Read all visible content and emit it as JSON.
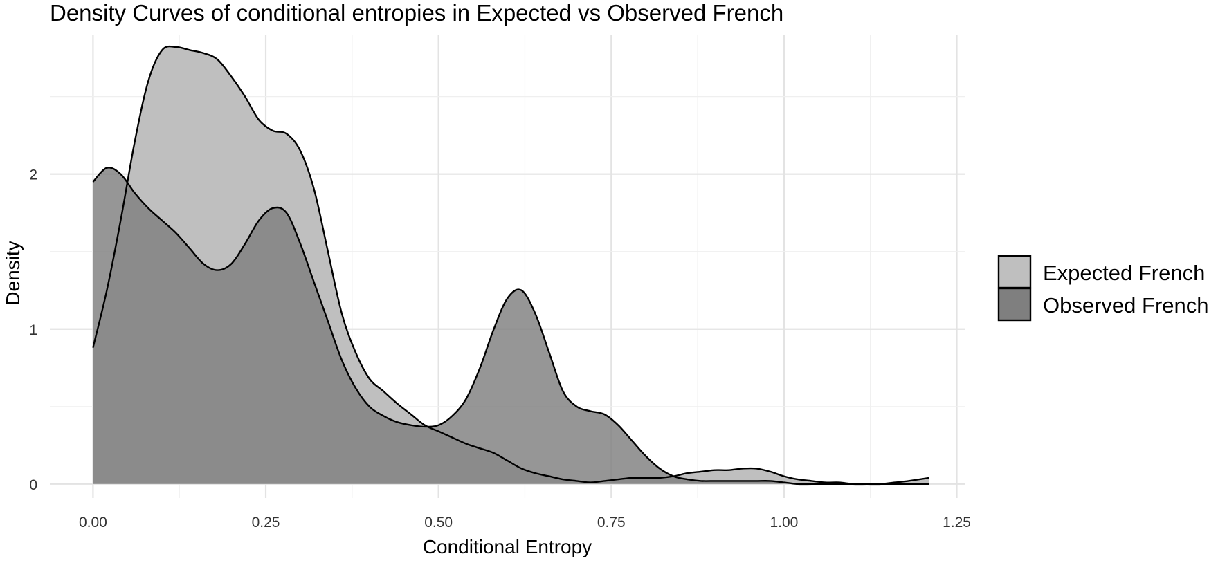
{
  "chart_data": {
    "type": "area",
    "title": "Density Curves of conditional entropies in Expected vs Observed French",
    "xlabel": "Conditional Entropy",
    "ylabel": "Density",
    "xlim": [
      -0.0625,
      1.2625
    ],
    "ylim": [
      -0.09,
      2.9
    ],
    "x_ticks": [
      0.0,
      0.25,
      0.5,
      0.75,
      1.0,
      1.25
    ],
    "x_tick_labels": [
      "0.00",
      "0.25",
      "0.50",
      "0.75",
      "1.00",
      "1.25"
    ],
    "y_ticks": [
      0,
      1,
      2
    ],
    "y_tick_labels": [
      "0",
      "1",
      "2"
    ],
    "grid": true,
    "legend_position": "right",
    "series": [
      {
        "name": "Expected French",
        "color": "#bfbfbf",
        "x": [
          0.0,
          0.02,
          0.04,
          0.06,
          0.08,
          0.1,
          0.12,
          0.14,
          0.16,
          0.18,
          0.2,
          0.22,
          0.24,
          0.26,
          0.28,
          0.3,
          0.32,
          0.34,
          0.36,
          0.38,
          0.4,
          0.42,
          0.44,
          0.46,
          0.48,
          0.5,
          0.52,
          0.54,
          0.56,
          0.58,
          0.6,
          0.62,
          0.64,
          0.66,
          0.68,
          0.7,
          0.72,
          0.74,
          0.76,
          0.78,
          0.8,
          0.82,
          0.84,
          0.86,
          0.88,
          0.9,
          0.92,
          0.94,
          0.96,
          0.98,
          1.0,
          1.02,
          1.04,
          1.06,
          1.08,
          1.1,
          1.12,
          1.14,
          1.16,
          1.18,
          1.21
        ],
        "y": [
          0.88,
          1.25,
          1.7,
          2.2,
          2.6,
          2.8,
          2.82,
          2.8,
          2.78,
          2.74,
          2.63,
          2.5,
          2.35,
          2.28,
          2.26,
          2.15,
          1.9,
          1.5,
          1.1,
          0.85,
          0.68,
          0.6,
          0.52,
          0.45,
          0.38,
          0.34,
          0.3,
          0.26,
          0.23,
          0.2,
          0.15,
          0.1,
          0.07,
          0.05,
          0.03,
          0.02,
          0.01,
          0.02,
          0.03,
          0.04,
          0.04,
          0.04,
          0.05,
          0.07,
          0.08,
          0.09,
          0.09,
          0.1,
          0.1,
          0.08,
          0.05,
          0.03,
          0.02,
          0.01,
          0.01,
          0.0,
          0.0,
          0.0,
          0.01,
          0.02,
          0.04
        ]
      },
      {
        "name": "Observed French",
        "color": "#7f7f7f",
        "x": [
          0.0,
          0.02,
          0.04,
          0.06,
          0.08,
          0.1,
          0.12,
          0.14,
          0.16,
          0.18,
          0.2,
          0.22,
          0.24,
          0.26,
          0.28,
          0.3,
          0.32,
          0.34,
          0.36,
          0.38,
          0.4,
          0.42,
          0.44,
          0.46,
          0.48,
          0.5,
          0.52,
          0.54,
          0.56,
          0.58,
          0.6,
          0.62,
          0.64,
          0.66,
          0.68,
          0.7,
          0.72,
          0.74,
          0.76,
          0.78,
          0.8,
          0.82,
          0.84,
          0.86,
          0.88,
          0.9,
          0.92,
          0.94,
          0.96,
          0.98,
          1.0,
          1.02,
          1.04,
          1.06,
          1.08,
          1.1,
          1.12,
          1.14,
          1.16,
          1.18,
          1.21
        ],
        "y": [
          1.95,
          2.04,
          2.0,
          1.88,
          1.78,
          1.7,
          1.62,
          1.52,
          1.42,
          1.38,
          1.42,
          1.55,
          1.7,
          1.78,
          1.75,
          1.55,
          1.3,
          1.05,
          0.8,
          0.62,
          0.5,
          0.44,
          0.4,
          0.38,
          0.37,
          0.38,
          0.44,
          0.55,
          0.75,
          1.0,
          1.2,
          1.25,
          1.1,
          0.85,
          0.6,
          0.5,
          0.47,
          0.45,
          0.38,
          0.28,
          0.18,
          0.1,
          0.05,
          0.03,
          0.02,
          0.02,
          0.02,
          0.02,
          0.02,
          0.02,
          0.01,
          0.0,
          0.0,
          0.0,
          0.0,
          0.0,
          0.0,
          0.0,
          0.0,
          0.0,
          0.0
        ]
      }
    ]
  }
}
